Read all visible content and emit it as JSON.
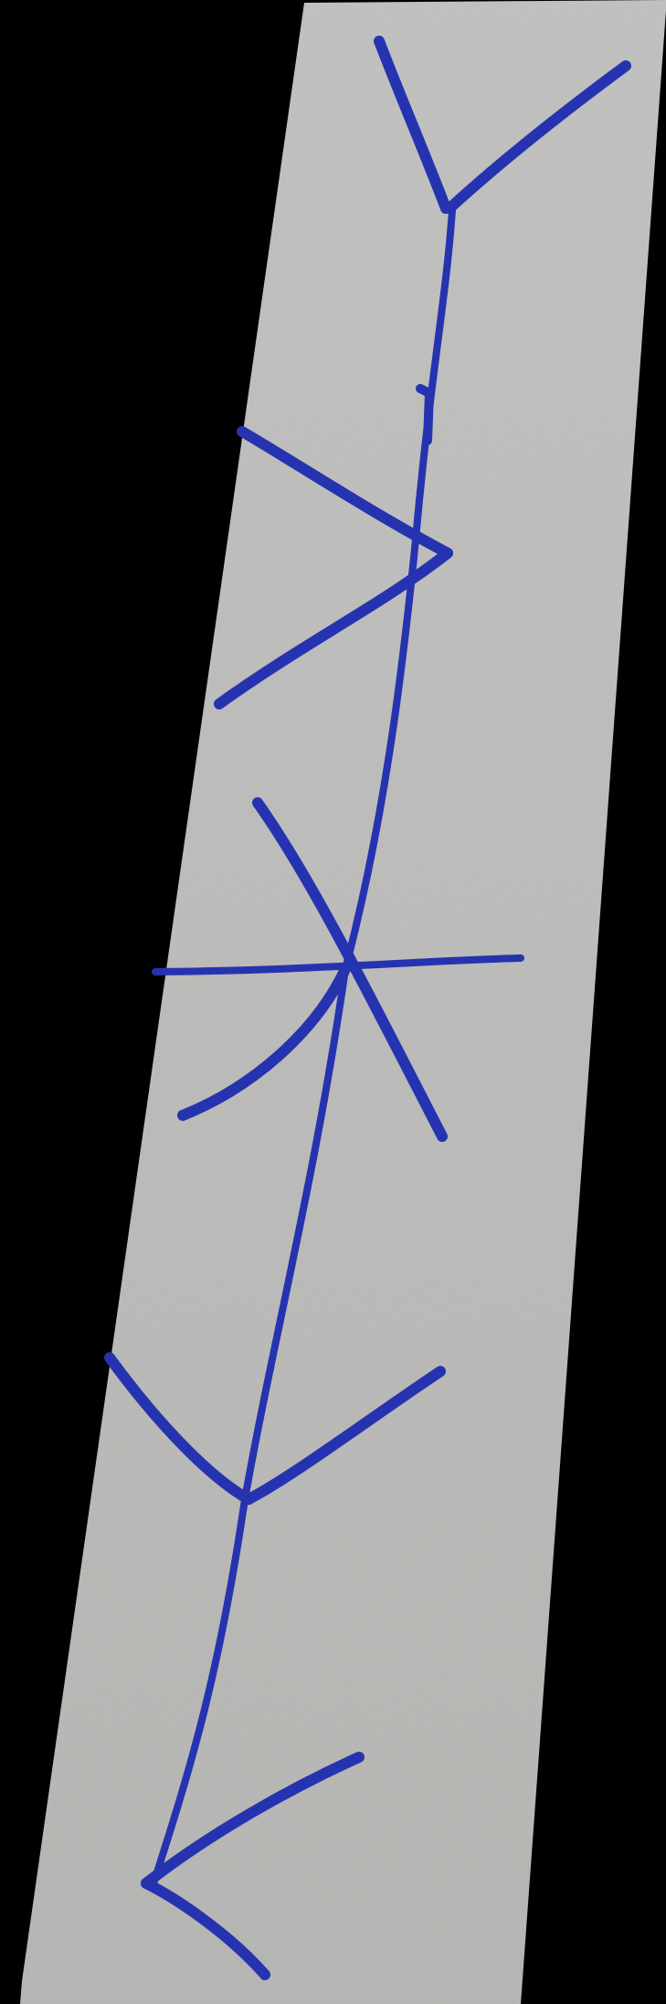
{
  "photo": {
    "background_color": "#000000",
    "paper_color": "#c4c4c2",
    "paper_shadow_color": "#b9b9b7",
    "ink_color": "#2633b0"
  },
  "figure": {
    "symbols": [
      "branch-y",
      "branch-v",
      "asterisk-star",
      "branch-y",
      "arrowhead"
    ]
  }
}
